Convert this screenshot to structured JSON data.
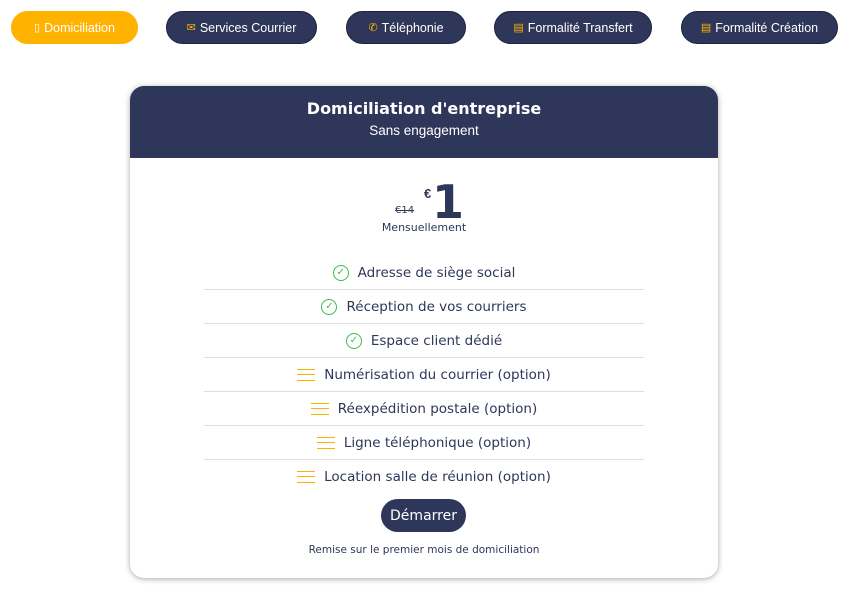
{
  "tabs": [
    {
      "label": "Domiciliation",
      "icon": "building-icon",
      "active": true
    },
    {
      "label": "Services Courrier",
      "icon": "mail-icon"
    },
    {
      "label": "Téléphonie",
      "icon": "phone-icon"
    },
    {
      "label": "Formalité Transfert",
      "icon": "document-icon"
    },
    {
      "label": "Formalité Création",
      "icon": "document-icon"
    }
  ],
  "card": {
    "title": "Domiciliation d'entreprise",
    "subtitle": "Sans engagement",
    "old_price": "€14",
    "currency": "€",
    "price": "1",
    "period": "Mensuellement",
    "features": [
      {
        "label": "Adresse de siège social",
        "type": "included"
      },
      {
        "label": "Réception de vos courriers",
        "type": "included"
      },
      {
        "label": "Espace client dédié",
        "type": "included"
      },
      {
        "label": "Numérisation du courrier (option)",
        "type": "option"
      },
      {
        "label": "Réexpédition postale (option)",
        "type": "option"
      },
      {
        "label": "Ligne téléphonique (option)",
        "type": "option"
      },
      {
        "label": "Location salle de réunion (option)",
        "type": "option"
      }
    ],
    "button": "Démarrer",
    "note": "Remise sur le premier mois de domiciliation"
  },
  "colors": {
    "primary": "#2e375a",
    "accent": "#ffb200",
    "check": "#3cbb4c"
  }
}
